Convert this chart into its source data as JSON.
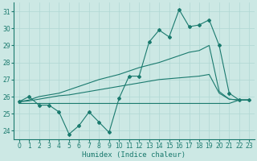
{
  "xlabel": "Humidex (Indice chaleur)",
  "background_color": "#cce8e4",
  "grid_color": "#b0d8d4",
  "line_color": "#1a7a6e",
  "xlim": [
    -0.5,
    23.5
  ],
  "ylim": [
    23.5,
    31.5
  ],
  "yticks": [
    24,
    25,
    26,
    27,
    28,
    29,
    30,
    31
  ],
  "xticks": [
    0,
    1,
    2,
    3,
    4,
    5,
    6,
    7,
    8,
    9,
    10,
    11,
    12,
    13,
    14,
    15,
    16,
    17,
    18,
    19,
    20,
    21,
    22,
    23
  ],
  "series": {
    "zigzag": [
      25.7,
      26.0,
      25.5,
      25.5,
      25.1,
      23.8,
      24.3,
      25.1,
      24.5,
      23.9,
      25.9,
      27.2,
      27.2,
      29.2,
      29.9,
      29.5,
      31.1,
      30.1,
      30.2,
      30.5,
      29.0,
      26.2,
      25.8,
      25.8
    ],
    "flat": [
      25.6,
      25.6,
      25.6,
      25.6,
      25.6,
      25.6,
      25.6,
      25.6,
      25.6,
      25.6,
      25.6,
      25.6,
      25.6,
      25.6,
      25.6,
      25.6,
      25.6,
      25.6,
      25.6,
      25.6,
      25.6,
      25.6,
      25.8,
      25.8
    ],
    "diag1": [
      25.7,
      25.75,
      25.85,
      25.95,
      26.05,
      26.1,
      26.2,
      26.3,
      26.4,
      26.5,
      26.6,
      26.7,
      26.8,
      26.9,
      27.0,
      27.05,
      27.1,
      27.15,
      27.2,
      27.3,
      26.2,
      25.85,
      25.8,
      25.8
    ],
    "diag2": [
      25.7,
      25.8,
      26.0,
      26.1,
      26.2,
      26.4,
      26.6,
      26.8,
      27.0,
      27.15,
      27.3,
      27.5,
      27.7,
      27.85,
      28.0,
      28.2,
      28.4,
      28.6,
      28.7,
      29.0,
      26.3,
      25.85,
      25.8,
      25.8
    ]
  }
}
